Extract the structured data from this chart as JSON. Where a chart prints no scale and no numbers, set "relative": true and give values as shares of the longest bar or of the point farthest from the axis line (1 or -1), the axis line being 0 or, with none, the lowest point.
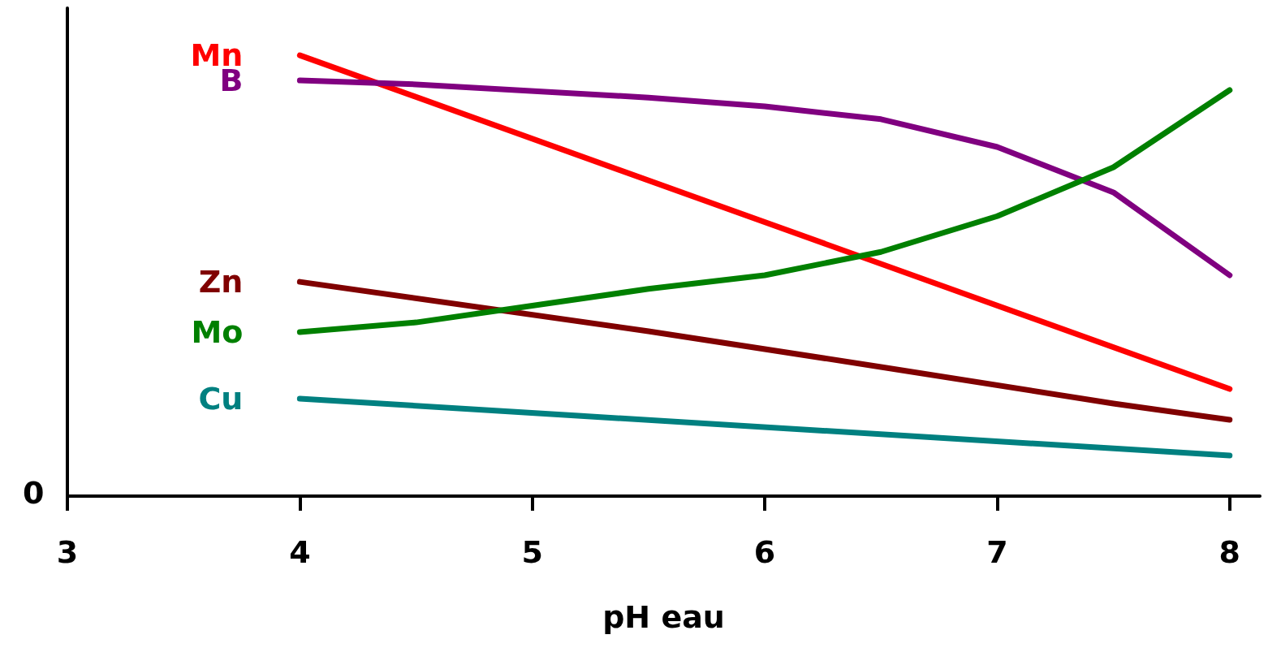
{
  "chart_data": {
    "type": "line",
    "relative": true,
    "xlabel": "pH eau",
    "xlim": [
      3,
      8.13
    ],
    "xticks": [
      3,
      4,
      5,
      6,
      7,
      8
    ],
    "grid": false,
    "legend": false,
    "marker": "none",
    "line_style": "solid",
    "annotations": [
      "0"
    ],
    "series": [
      {
        "name": "Mn",
        "color": "#ff0000",
        "x": [
          4,
          8
        ],
        "values": [
          1.0,
          0.243
        ]
      },
      {
        "name": "B",
        "color": "#800080",
        "x": [
          4,
          4.5,
          5.5,
          6,
          6.5,
          7,
          7.5,
          8
        ],
        "values": [
          0.943,
          0.934,
          0.904,
          0.884,
          0.855,
          0.792,
          0.689,
          0.501
        ]
      },
      {
        "name": "Zn",
        "color": "#800000",
        "x": [
          4,
          5.5,
          6.5,
          7.5,
          8
        ],
        "values": [
          0.486,
          0.374,
          0.293,
          0.21,
          0.173
        ]
      },
      {
        "name": "Mo",
        "color": "#008000",
        "x": [
          4,
          4.5,
          5.5,
          6,
          6.5,
          7,
          7.5,
          8
        ],
        "values": [
          0.372,
          0.394,
          0.47,
          0.501,
          0.554,
          0.635,
          0.746,
          0.921
        ]
      },
      {
        "name": "Cu",
        "color": "#008080",
        "x": [
          4,
          8
        ],
        "values": [
          0.221,
          0.092
        ]
      }
    ]
  }
}
